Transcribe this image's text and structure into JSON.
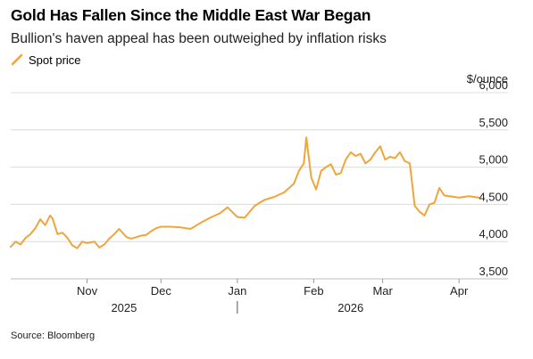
{
  "title": "Gold Has Fallen Since the Middle East War Began",
  "subtitle": "Bullion's haven appeal has been outweighed by inflation risks",
  "source": "Source: Bloomberg",
  "colors": {
    "line": "#f0a53c",
    "grid": "#dcdcdc",
    "text": "#222222"
  },
  "chart_data": {
    "type": "line",
    "title": "Gold Has Fallen Since the Middle East War Began",
    "subtitle": "Bullion's haven appeal has been outweighed by inflation risks",
    "ylabel": "$/ounce",
    "ylim": [
      3500,
      6000
    ],
    "yticks": [
      3500,
      4000,
      4500,
      5000,
      5500,
      6000
    ],
    "ytick_labels": [
      "3,500",
      "4,000",
      "4,500",
      "5,000",
      "5,500",
      "6,000"
    ],
    "xlim": [
      "2025-10-01",
      "2026-04-10"
    ],
    "xticks": [
      {
        "date": "2025-11-01",
        "label": "Nov"
      },
      {
        "date": "2025-12-01",
        "label": "Dec"
      },
      {
        "date": "2026-01-01",
        "label": "Jan"
      },
      {
        "date": "2026-02-01",
        "label": "Feb"
      },
      {
        "date": "2026-03-01",
        "label": "Mar"
      },
      {
        "date": "2026-04-01",
        "label": "Apr"
      }
    ],
    "year_labels": [
      {
        "date": "2025-11-16",
        "label": "2025"
      },
      {
        "date": "2026-02-16",
        "label": "2026"
      }
    ],
    "year_separator": "2026-01-01",
    "grid": true,
    "legend_position": "top-left",
    "series": [
      {
        "name": "Spot price",
        "color": "#f0a53c",
        "x": [
          "2025-10-01",
          "2025-10-03",
          "2025-10-05",
          "2025-10-07",
          "2025-10-09",
          "2025-10-11",
          "2025-10-13",
          "2025-10-15",
          "2025-10-17",
          "2025-10-18",
          "2025-10-20",
          "2025-10-22",
          "2025-10-24",
          "2025-10-26",
          "2025-10-28",
          "2025-10-30",
          "2025-11-01",
          "2025-11-04",
          "2025-11-06",
          "2025-11-08",
          "2025-11-10",
          "2025-11-12",
          "2025-11-14",
          "2025-11-17",
          "2025-11-19",
          "2025-11-21",
          "2025-11-23",
          "2025-11-25",
          "2025-11-27",
          "2025-11-29",
          "2025-12-01",
          "2025-12-05",
          "2025-12-09",
          "2025-12-13",
          "2025-12-17",
          "2025-12-21",
          "2025-12-25",
          "2025-12-28",
          "2026-01-01",
          "2026-01-04",
          "2026-01-08",
          "2026-01-12",
          "2026-01-16",
          "2026-01-20",
          "2026-01-24",
          "2026-01-26",
          "2026-01-28",
          "2026-01-29",
          "2026-01-31",
          "2026-02-02",
          "2026-02-04",
          "2026-02-06",
          "2026-02-08",
          "2026-02-10",
          "2026-02-12",
          "2026-02-14",
          "2026-02-16",
          "2026-02-18",
          "2026-02-20",
          "2026-02-22",
          "2026-02-24",
          "2026-02-26",
          "2026-02-28",
          "2026-03-02",
          "2026-03-04",
          "2026-03-06",
          "2026-03-08",
          "2026-03-10",
          "2026-03-12",
          "2026-03-14",
          "2026-03-16",
          "2026-03-18",
          "2026-03-20",
          "2026-03-22",
          "2026-03-24",
          "2026-03-26",
          "2026-03-28",
          "2026-03-30",
          "2026-04-01",
          "2026-04-03",
          "2026-04-05",
          "2026-04-07",
          "2026-04-09"
        ],
        "y": [
          3930,
          4000,
          3960,
          4050,
          4100,
          4180,
          4300,
          4220,
          4350,
          4310,
          4100,
          4120,
          4050,
          3950,
          3910,
          4000,
          3980,
          4000,
          3920,
          3960,
          4040,
          4100,
          4170,
          4060,
          4040,
          4060,
          4080,
          4090,
          4140,
          4180,
          4200,
          4200,
          4190,
          4170,
          4250,
          4320,
          4380,
          4460,
          4330,
          4320,
          4480,
          4560,
          4600,
          4660,
          4780,
          4950,
          5050,
          5400,
          4860,
          4700,
          4950,
          5000,
          5040,
          4900,
          4920,
          5100,
          5200,
          5150,
          5180,
          5050,
          5100,
          5200,
          5280,
          5100,
          5140,
          5120,
          5200,
          5080,
          5050,
          4480,
          4400,
          4350,
          4500,
          4520,
          4720,
          4620,
          4610,
          4600,
          4590,
          4600,
          4610,
          4600,
          4590
        ]
      }
    ]
  }
}
